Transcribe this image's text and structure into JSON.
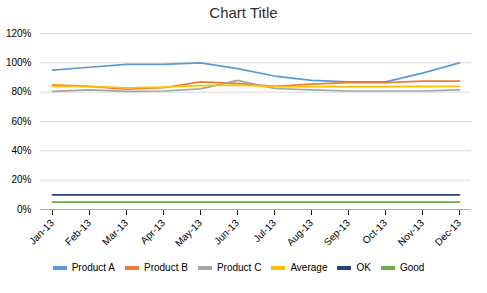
{
  "chart_data": {
    "type": "line",
    "title": "Chart Title",
    "categories": [
      "Jan-13",
      "Feb-13",
      "Mar-13",
      "Apr-13",
      "May-13",
      "Jun-13",
      "Jul-13",
      "Aug-13",
      "Sep-13",
      "Oct-13",
      "Nov-13",
      "Dec-13"
    ],
    "series": [
      {
        "name": "Product A",
        "color": "#5B9BD5",
        "values": [
          0.95,
          0.97,
          0.99,
          0.99,
          1.0,
          0.96,
          0.91,
          0.88,
          0.87,
          0.87,
          0.93,
          1.0
        ]
      },
      {
        "name": "Product B",
        "color": "#ED7D31",
        "values": [
          0.85,
          0.84,
          0.82,
          0.83,
          0.87,
          0.86,
          0.84,
          0.855,
          0.865,
          0.865,
          0.875,
          0.875
        ]
      },
      {
        "name": "Product C",
        "color": "#A5A5A5",
        "values": [
          0.805,
          0.815,
          0.805,
          0.808,
          0.822,
          0.88,
          0.825,
          0.815,
          0.808,
          0.808,
          0.808,
          0.815
        ]
      },
      {
        "name": "Average",
        "color": "#FFC000",
        "values": [
          0.84,
          0.84,
          0.83,
          0.835,
          0.845,
          0.848,
          0.838,
          0.838,
          0.838,
          0.838,
          0.84,
          0.84
        ]
      },
      {
        "name": "OK",
        "color": "#264478",
        "values": [
          0.1,
          0.1,
          0.1,
          0.1,
          0.1,
          0.1,
          0.1,
          0.1,
          0.1,
          0.1,
          0.1,
          0.1
        ]
      },
      {
        "name": "Good",
        "color": "#70AD47",
        "values": [
          0.05,
          0.05,
          0.05,
          0.05,
          0.05,
          0.05,
          0.05,
          0.05,
          0.05,
          0.05,
          0.05,
          0.05
        ]
      }
    ],
    "ylim": [
      0.0,
      1.2
    ],
    "yticks": [
      {
        "value": 0.0,
        "label": "0%"
      },
      {
        "value": 0.2,
        "label": "20%"
      },
      {
        "value": 0.4,
        "label": "40%"
      },
      {
        "value": 0.6,
        "label": "60%"
      },
      {
        "value": 0.8,
        "label": "80%"
      },
      {
        "value": 1.0,
        "label": "100%"
      },
      {
        "value": 1.2,
        "label": "120%"
      }
    ],
    "grid": true,
    "legend": "bottom"
  }
}
